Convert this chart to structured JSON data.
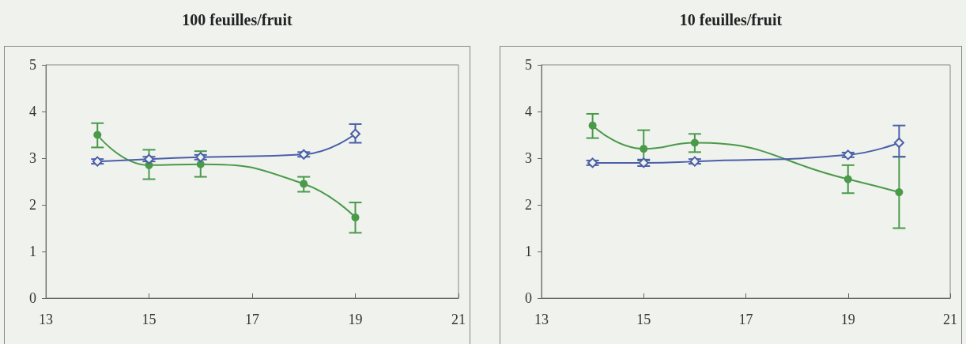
{
  "chart_data": [
    {
      "type": "line",
      "title": "100 feuilles/fruit",
      "xlim": [
        13,
        21
      ],
      "xticks": [
        13,
        15,
        17,
        19,
        21
      ],
      "ylim": [
        0,
        5
      ],
      "yticks": [
        0,
        1,
        2,
        3,
        4,
        5
      ],
      "grid": false,
      "series": [
        {
          "color": "#4a9a4a",
          "marker": "circle",
          "x": [
            14,
            15,
            16,
            18,
            19
          ],
          "values": [
            3.5,
            2.85,
            2.87,
            2.45,
            1.73
          ],
          "errors": [
            [
              3.23,
              3.75
            ],
            [
              2.55,
              3.18
            ],
            [
              2.6,
              3.15
            ],
            [
              2.28,
              2.6
            ],
            [
              1.4,
              2.05
            ]
          ]
        },
        {
          "color": "#4a5fa8",
          "marker": "diamond",
          "x": [
            14,
            15,
            16,
            18,
            19
          ],
          "values": [
            2.93,
            2.98,
            3.02,
            3.08,
            3.52
          ],
          "errors": [
            [
              2.88,
              2.98
            ],
            [
              2.93,
              3.03
            ],
            [
              2.97,
              3.07
            ],
            [
              3.03,
              3.13
            ],
            [
              3.33,
              3.73
            ]
          ]
        }
      ]
    },
    {
      "type": "line",
      "title": "10 feuilles/fruit",
      "xlim": [
        13,
        21
      ],
      "xticks": [
        13,
        15,
        17,
        19,
        21
      ],
      "ylim": [
        0,
        5
      ],
      "yticks": [
        0,
        1,
        2,
        3,
        4,
        5
      ],
      "grid": false,
      "series": [
        {
          "color": "#4a9a4a",
          "marker": "circle",
          "x": [
            14,
            15,
            16,
            19,
            20
          ],
          "values": [
            3.7,
            3.2,
            3.33,
            2.55,
            2.27
          ],
          "errors": [
            [
              3.43,
              3.95
            ],
            [
              2.95,
              3.6
            ],
            [
              3.13,
              3.52
            ],
            [
              2.25,
              2.85
            ],
            [
              1.5,
              3.03
            ]
          ]
        },
        {
          "color": "#4a5fa8",
          "marker": "diamond",
          "x": [
            14,
            15,
            16,
            19,
            20
          ],
          "values": [
            2.9,
            2.9,
            2.93,
            3.07,
            3.33
          ],
          "errors": [
            [
              2.85,
              2.95
            ],
            [
              2.83,
              2.97
            ],
            [
              2.88,
              2.98
            ],
            [
              3.02,
              3.12
            ],
            [
              3.03,
              3.7
            ]
          ]
        }
      ]
    }
  ]
}
